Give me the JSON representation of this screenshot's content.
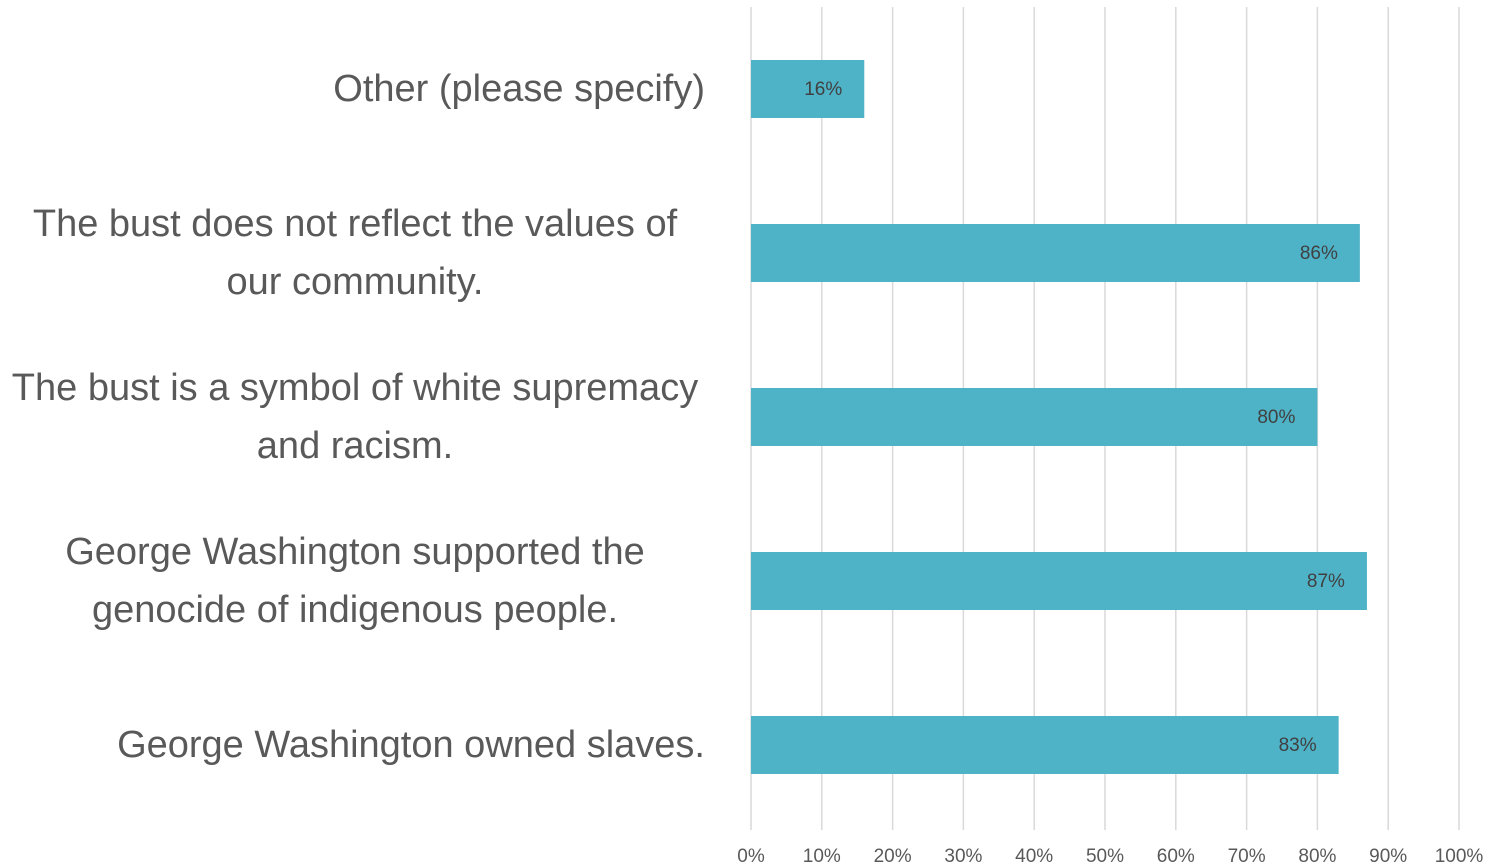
{
  "chart_data": {
    "type": "barh",
    "categories": [
      "Other (please specify)",
      "The bust does not reflect the values of our community.",
      "The bust is a symbol of white supremacy and racism.",
      "George Washington supported the genocide of indigenous people.",
      "George Washington owned slaves."
    ],
    "values": [
      16,
      86,
      80,
      87,
      83
    ],
    "value_labels": [
      "16%",
      "86%",
      "80%",
      "87%",
      "83%"
    ],
    "color": "#4fb3c8",
    "xlim": [
      0,
      100
    ],
    "xticks": [
      {
        "value": 0,
        "label": "0%"
      },
      {
        "value": 10,
        "label": "10%"
      },
      {
        "value": 20,
        "label": "20%"
      },
      {
        "value": 30,
        "label": "30%"
      },
      {
        "value": 40,
        "label": "40%"
      },
      {
        "value": 50,
        "label": "50%"
      },
      {
        "value": 60,
        "label": "60%"
      },
      {
        "value": 70,
        "label": "70%"
      },
      {
        "value": 80,
        "label": "80%"
      },
      {
        "value": 90,
        "label": "90%"
      },
      {
        "value": 100,
        "label": "100%"
      }
    ],
    "grid": true
  }
}
